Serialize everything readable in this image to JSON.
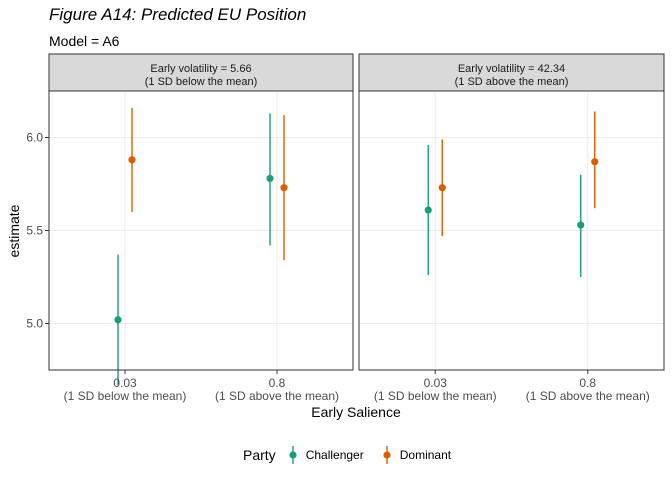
{
  "title": "Figure A14: Predicted EU Position",
  "subtitle": "Model = A6",
  "chart_data": {
    "type": "pointrange",
    "ylabel": "estimate",
    "xlabel": "Early Salience",
    "ylim": [
      4.75,
      6.25
    ],
    "yticks": [
      5.0,
      5.5,
      6.0
    ],
    "ytick_labels": [
      "5.0",
      "5.5",
      "6.0"
    ],
    "categories": [
      {
        "line1": "0.03",
        "line2": "(1 SD below the mean)"
      },
      {
        "line1": "0.8",
        "line2": "(1 SD above the mean)"
      }
    ],
    "grid": true,
    "legend_position": "bottom",
    "legend_title": "Party",
    "series": [
      {
        "name": "Challenger",
        "color": "#1b9e77"
      },
      {
        "name": "Dominant",
        "color": "#d95f02"
      }
    ],
    "panels": [
      {
        "header_line1": "Early volatility = 5.66",
        "header_line2": "(1 SD below the mean)",
        "points": [
          {
            "series": "Challenger",
            "category": 0,
            "estimate": 5.02,
            "lower": 4.67,
            "upper": 5.37
          },
          {
            "series": "Dominant",
            "category": 0,
            "estimate": 5.88,
            "lower": 5.6,
            "upper": 6.16
          },
          {
            "series": "Challenger",
            "category": 1,
            "estimate": 5.78,
            "lower": 5.42,
            "upper": 6.13
          },
          {
            "series": "Dominant",
            "category": 1,
            "estimate": 5.73,
            "lower": 5.34,
            "upper": 6.12
          }
        ]
      },
      {
        "header_line1": "Early volatility = 42.34",
        "header_line2": "(1 SD above the mean)",
        "points": [
          {
            "series": "Challenger",
            "category": 0,
            "estimate": 5.61,
            "lower": 5.26,
            "upper": 5.96
          },
          {
            "series": "Dominant",
            "category": 0,
            "estimate": 5.73,
            "lower": 5.47,
            "upper": 5.99
          },
          {
            "series": "Challenger",
            "category": 1,
            "estimate": 5.53,
            "lower": 5.25,
            "upper": 5.8
          },
          {
            "series": "Dominant",
            "category": 1,
            "estimate": 5.87,
            "lower": 5.62,
            "upper": 6.14
          }
        ]
      }
    ]
  }
}
